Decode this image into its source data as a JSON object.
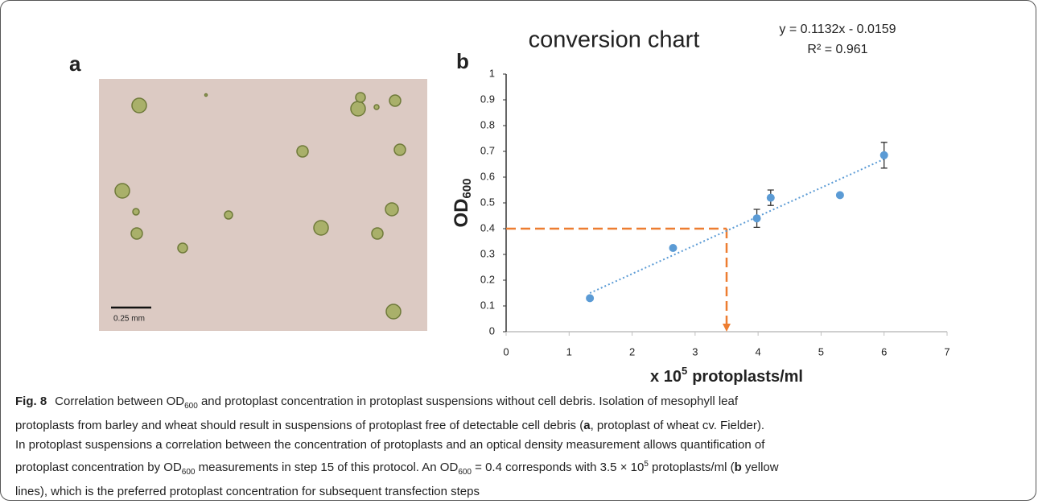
{
  "panel_a": {
    "label": "a",
    "scale_bar": "0.25 mm"
  },
  "chart_data": {
    "type": "scatter",
    "panel_label": "b",
    "title": "conversion chart",
    "annotations": [
      "y = 0.1132x - 0.0159",
      "R² = 0.961"
    ],
    "ylabel": {
      "text": "OD",
      "sub": "600"
    },
    "xlabel": {
      "text": "x 10",
      "sup": "5",
      "rest": "protoplasts/ml"
    },
    "series": [
      {
        "color": "#5b9bd5",
        "x": [
          1.33,
          2.65,
          3.98,
          4.2,
          5.3,
          6.0
        ],
        "values": [
          0.13,
          0.325,
          0.44,
          0.52,
          0.53,
          0.685
        ],
        "errors": [
          null,
          null,
          0.035,
          0.03,
          null,
          0.05
        ]
      }
    ],
    "trendline": {
      "color": "#5b9bd5",
      "x": [
        1.33,
        6.0
      ],
      "values": [
        0.15,
        0.67
      ]
    },
    "reference": {
      "color": "#ed7d31",
      "x": 3.5,
      "y": 0.4
    },
    "xlim": [
      0,
      7
    ],
    "ylim": [
      0,
      1
    ],
    "xticks": [
      0,
      1,
      2,
      3,
      4,
      5,
      6,
      7
    ],
    "yticks": [
      0,
      0.1,
      0.2,
      0.3,
      0.4,
      0.5,
      0.6,
      0.7,
      0.8,
      0.9,
      1
    ]
  },
  "caption": {
    "lines": [
      [
        {
          "text": "Fig. 8",
          "style": "bold"
        },
        "Correlation between OD",
        {
          "text": "600",
          "style": "sub"
        },
        " and protoplast concentration in protoplast suspensions without cell debris. Isolation of mesophyll leaf"
      ],
      [
        "protoplasts from barley and wheat should result in suspensions of protoplast free of detectable cell debris (",
        {
          "text": "a",
          "style": "bold"
        },
        ", protoplast of wheat cv. Fielder)."
      ],
      [
        "In protoplast suspensions a correlation between the concentration of protoplasts and an optical density measurement allows quantification of"
      ],
      [
        "protoplast concentration by OD",
        {
          "text": "600",
          "style": "sub"
        },
        " measurements in step 15 of this protocol. An OD",
        {
          "text": "600",
          "style": "sub"
        },
        " = 0.4 corresponds with 3.5 × 10",
        {
          "text": "5",
          "style": "sup"
        },
        " protoplasts/ml (",
        {
          "text": "b",
          "style": "bold"
        },
        " yellow"
      ],
      [
        "lines), which is the preferred protoplast concentration for subsequent transfection steps"
      ]
    ]
  }
}
